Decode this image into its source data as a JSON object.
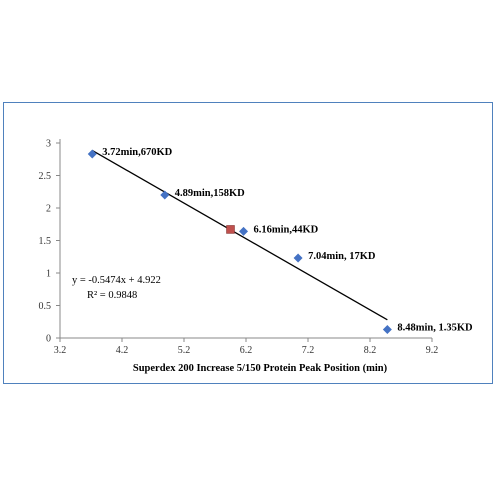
{
  "chart_data": {
    "type": "scatter",
    "title": "",
    "xlabel": "Superdex 200 Increase 5/150  Protein Peak Position (min)",
    "ylabel": "",
    "xlim": [
      3.2,
      9.2
    ],
    "ylim": [
      0,
      3
    ],
    "xticks": [
      "3.2",
      "4.2",
      "5.2",
      "6.2",
      "7.2",
      "8.2",
      "9.2"
    ],
    "yticks": [
      "0",
      "0.5",
      "1",
      "1.5",
      "2",
      "2.5",
      "3"
    ],
    "grid": false,
    "legend": "none",
    "points": [
      {
        "x": 3.72,
        "y": 2.83,
        "label": "3.72min,670KD"
      },
      {
        "x": 4.89,
        "y": 2.2,
        "label": "4.89min,158KD"
      },
      {
        "x": 6.16,
        "y": 1.64,
        "label": "6.16min,44KD"
      },
      {
        "x": 7.04,
        "y": 1.23,
        "label": "7.04min, 17KD"
      },
      {
        "x": 8.48,
        "y": 0.13,
        "label": "8.48min, 1.35KD"
      }
    ],
    "sample_point": {
      "x": 5.95,
      "y": 1.67
    },
    "trendline": {
      "slope": -0.5474,
      "intercept": 4.922,
      "x_range": [
        3.72,
        8.48
      ],
      "equation": "y = -0.5474x + 4.922",
      "r_squared": "R² = 0.9848"
    },
    "colors": {
      "point": "#4472c4",
      "sample": "#c0504d",
      "line": "#000000",
      "axis": "#888888",
      "frame": "#4f81bd"
    }
  }
}
